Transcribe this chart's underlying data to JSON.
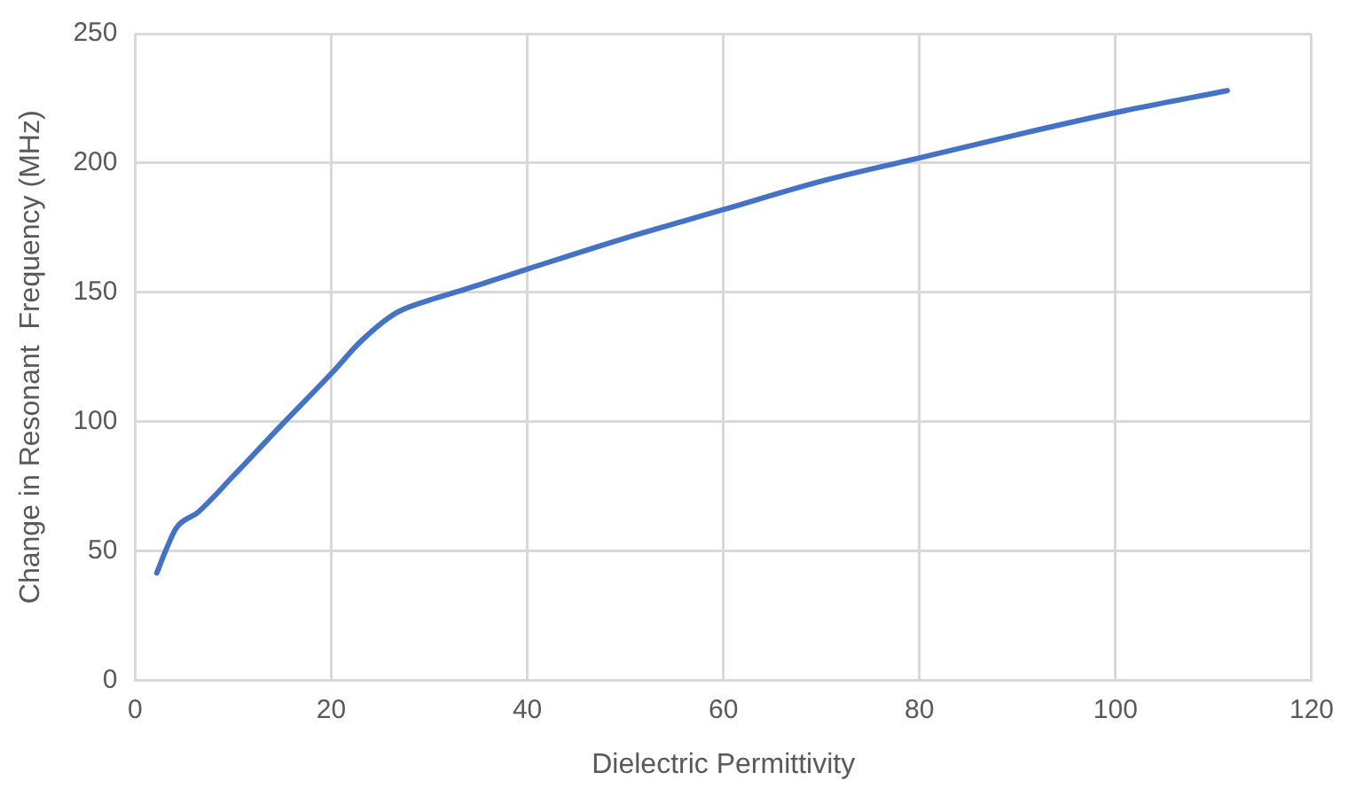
{
  "chart_data": {
    "type": "line",
    "xlabel": "Dielectric Permittivity",
    "ylabel": "Change in Resonant  Frequency (MHz)",
    "x": [
      2.2,
      3.2,
      4.2,
      6.4,
      10,
      15,
      20.1,
      23,
      26.6,
      30,
      33.5,
      40,
      50,
      60,
      70,
      80,
      90,
      100,
      111.4
    ],
    "series": [
      {
        "color": "#4472c4",
        "values": [
          41.5,
          51,
          59,
          65,
          79,
          99,
          119,
          131,
          142,
          147,
          151,
          159,
          171,
          182,
          193,
          202,
          211,
          219.5,
          228
        ]
      }
    ],
    "xlim": [
      0,
      120
    ],
    "xticks": [
      0,
      20,
      40,
      60,
      80,
      100,
      120
    ],
    "ylim": [
      0,
      250
    ],
    "yticks": [
      0,
      50,
      100,
      150,
      200,
      250
    ],
    "grid": true,
    "legend": false,
    "marker": "none",
    "line_style": "solid"
  }
}
